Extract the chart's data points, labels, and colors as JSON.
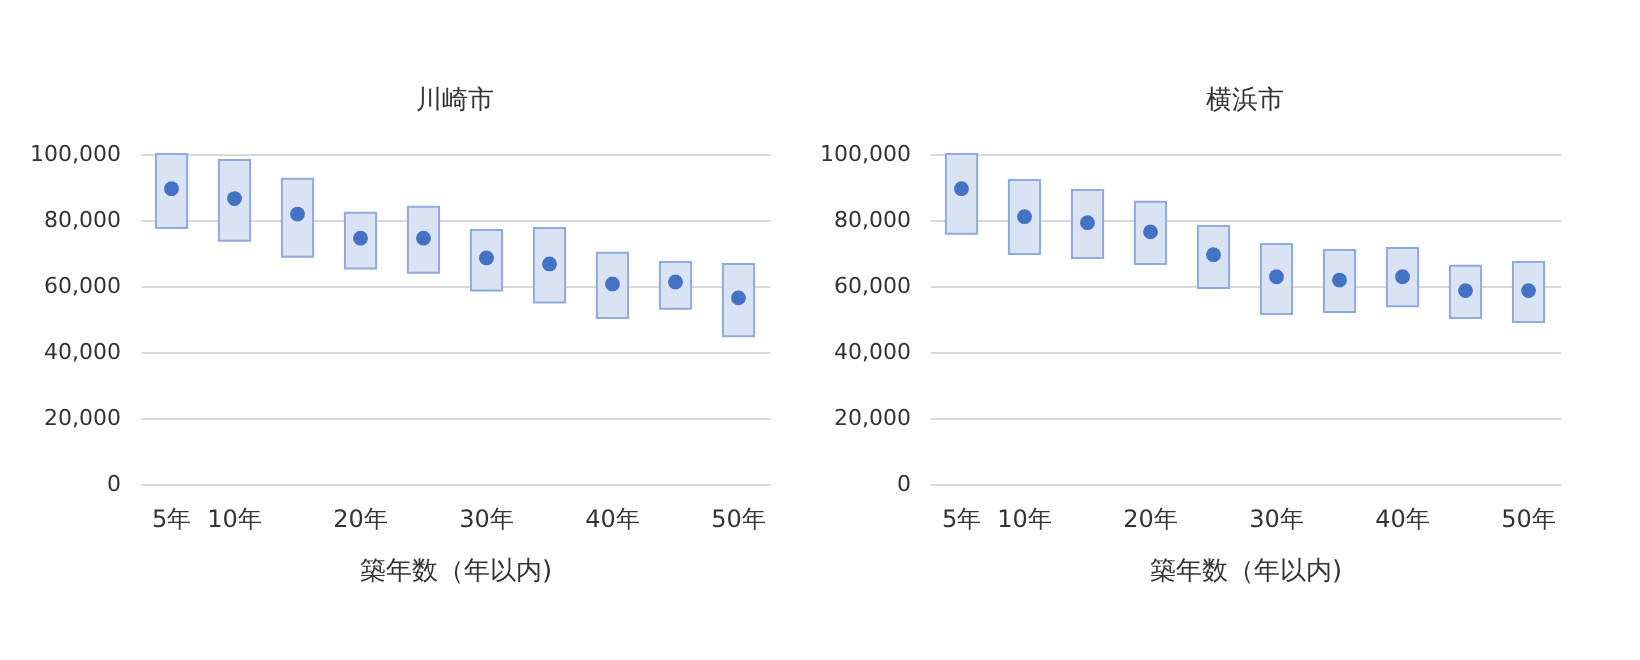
{
  "chart_data": [
    {
      "type": "bar",
      "title": "川崎市",
      "xlabel": "築年数（年以内)",
      "categories": [
        "5年",
        "10年",
        null,
        "20年",
        null,
        "30年",
        null,
        "40年",
        null,
        "50年"
      ],
      "series": [
        {
          "type": "bar",
          "color": "#dae3f3",
          "base": [
            77600,
            73700,
            68900,
            65300,
            64000,
            58600,
            55000,
            50300,
            53100,
            44800
          ],
          "values": [
            22400,
            24500,
            23600,
            16900,
            20000,
            18400,
            22600,
            19800,
            14200,
            21900
          ]
        },
        {
          "type": "scatter",
          "color": "#4472c4",
          "marker": "circle",
          "values": [
            89500,
            86500,
            81800,
            74500,
            74500,
            68500,
            66700,
            60600,
            61200,
            56400
          ]
        }
      ],
      "ylim": [
        0,
        100000
      ],
      "yticks": [
        0,
        {
          "value": 20000,
          "label": "20,000"
        },
        {
          "value": 40000,
          "label": "40,000"
        },
        {
          "value": 60000,
          "label": "60,000"
        },
        {
          "value": 80000,
          "label": "80,000"
        },
        {
          "value": 100000,
          "label": "100,000"
        }
      ],
      "grid": "y"
    },
    {
      "type": "bar",
      "title": "横浜市",
      "xlabel": "築年数（年以内)",
      "categories": [
        "5年",
        "10年",
        null,
        "20年",
        null,
        "30年",
        null,
        "40年",
        null,
        "50年"
      ],
      "series": [
        {
          "type": "bar",
          "color": "#dae3f3",
          "base": [
            75800,
            69700,
            68500,
            66700,
            59400,
            51500,
            52100,
            53900,
            50300,
            49100
          ],
          "values": [
            24200,
            22400,
            20600,
            18800,
            18800,
            21200,
            18800,
            17600,
            15800,
            18200
          ]
        },
        {
          "type": "scatter",
          "color": "#4472c4",
          "marker": "circle",
          "values": [
            89500,
            81000,
            79200,
            76400,
            69500,
            62800,
            61800,
            62800,
            58600,
            58600
          ]
        }
      ],
      "ylim": [
        0,
        100000
      ],
      "yticks": [
        0,
        {
          "value": 20000,
          "label": "20,000"
        },
        {
          "value": 40000,
          "label": "40,000"
        },
        {
          "value": 60000,
          "label": "60,000"
        },
        {
          "value": 80000,
          "label": "80,000"
        },
        {
          "value": 100000,
          "label": "100,000"
        }
      ],
      "grid": "y"
    }
  ]
}
